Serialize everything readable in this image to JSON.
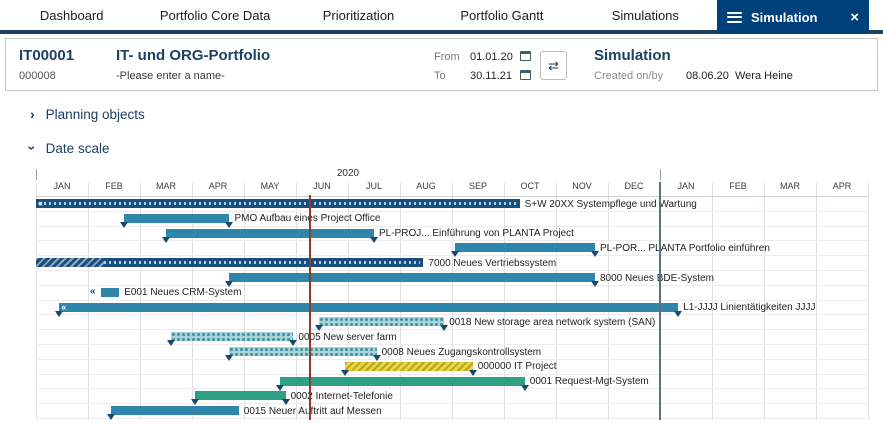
{
  "nav": {
    "tabs": [
      "Dashboard",
      "Portfolio Core Data",
      "Prioritization",
      "Portfolio Gantt",
      "Simulations"
    ],
    "active_tab": "Simulation"
  },
  "icons": {
    "close": "×",
    "refresh": "⇄",
    "chevron_right": "›",
    "chevron_down": "›",
    "rewind": "«"
  },
  "header": {
    "id": "IT00001",
    "code": "000008",
    "title": "IT- und ORG-Portfolio",
    "subtitle": "-Please enter a name-",
    "from_label": "From",
    "from_value": "01.01.20",
    "to_label": "To",
    "to_value": "30.11.21",
    "panel_title": "Simulation",
    "created_label": "Created on/by",
    "created_date": "08.06.20",
    "created_by": "Wera Heine"
  },
  "sections": {
    "planning": "Planning objects",
    "date_scale": "Date scale"
  },
  "chart_data": {
    "type": "gantt",
    "title": "Date scale",
    "year_label": "2020",
    "year_span": [
      0,
      12
    ],
    "months": [
      "JAN",
      "FEB",
      "MAR",
      "APR",
      "MAY",
      "JUN",
      "JUL",
      "AUG",
      "SEP",
      "OCT",
      "NOV",
      "DEC",
      "JAN",
      "FEB",
      "MAR",
      "APR"
    ],
    "axis_note": "months 0-11 = 2020, months 12-15 = Jan-Apr 2021",
    "today_line_month": 5.27,
    "year_boundary_month": 12,
    "colors": {
      "navy": "#1b4d7d",
      "teal": "#2f86ad",
      "light_fill": "#a9d3d6",
      "light_dot": "#3e93a4",
      "yellow": "#e9d63e",
      "green": "#2da085",
      "marker": "#17486f",
      "today_line": "#8d3b2b",
      "year_line": "#5d6e80",
      "navy_text": "#1e3f66",
      "active_tab_bg": "#00417c",
      "nav_underline": "#1d4063"
    },
    "rows": [
      {
        "label": "S+W 20XX Systempflege und Wartung",
        "start": 0,
        "end": 9.3,
        "style": "navy",
        "chevron": "inside"
      },
      {
        "label": "PMO  Aufbau eines Project Office",
        "start": 1.7,
        "end": 3.72,
        "style": "teal",
        "markers": [
          "start",
          "end"
        ]
      },
      {
        "label": "PL-PROJ...  Einführung von PLANTA Project",
        "start": 2.5,
        "end": 6.5,
        "style": "teal",
        "markers": [
          "start",
          "end"
        ]
      },
      {
        "label": "PL-POR...  PLANTA Portfolio einführen",
        "start": 8.05,
        "end": 10.75,
        "style": "teal",
        "markers": [
          "start",
          "end"
        ]
      },
      {
        "label": "7000 Neues Vertriebssystem",
        "start": 0,
        "end": 7.45,
        "style": "navy",
        "hatch_start": 1.3
      },
      {
        "label": "8000 Neues BDE-System",
        "start": 3.72,
        "end": 10.75,
        "style": "teal",
        "markers": [
          "start",
          "end"
        ]
      },
      {
        "label": "E001 Neues CRM-System",
        "start": 1.25,
        "end": 1.6,
        "style": "teal",
        "chevron": "before"
      },
      {
        "label": "L1-JJJJ Linientätigkeiten JJJJ",
        "start": 0.45,
        "end": 12.35,
        "style": "teal",
        "chevron": "inside",
        "markers": [
          "start",
          "end"
        ]
      },
      {
        "label": "0018 New storage area network system (SAN)",
        "start": 5.45,
        "end": 7.85,
        "style": "light",
        "markers": [
          "start",
          "end"
        ]
      },
      {
        "label": "0005 New server farm",
        "start": 2.6,
        "end": 4.95,
        "style": "light",
        "markers": [
          "start",
          "end"
        ]
      },
      {
        "label": "0008 Neues Zugangskontrollsystem",
        "start": 3.72,
        "end": 6.55,
        "style": "light",
        "markers": [
          "start",
          "end"
        ]
      },
      {
        "label": "000000 IT Project",
        "start": 5.95,
        "end": 8.4,
        "style": "yellow",
        "markers": [
          "start",
          "end"
        ]
      },
      {
        "label": "0001 Request-Mgt-System",
        "start": 4.7,
        "end": 9.4,
        "style": "green",
        "markers": [
          "start",
          "end"
        ]
      },
      {
        "label": "0002 Internet-Telefonie",
        "start": 3.05,
        "end": 4.8,
        "style": "green",
        "markers": [
          "start",
          "end"
        ]
      },
      {
        "label": "0015 Neuer Auftritt auf Messen",
        "start": 1.45,
        "end": 3.9,
        "style": "teal",
        "markers": [
          "start"
        ]
      }
    ]
  }
}
